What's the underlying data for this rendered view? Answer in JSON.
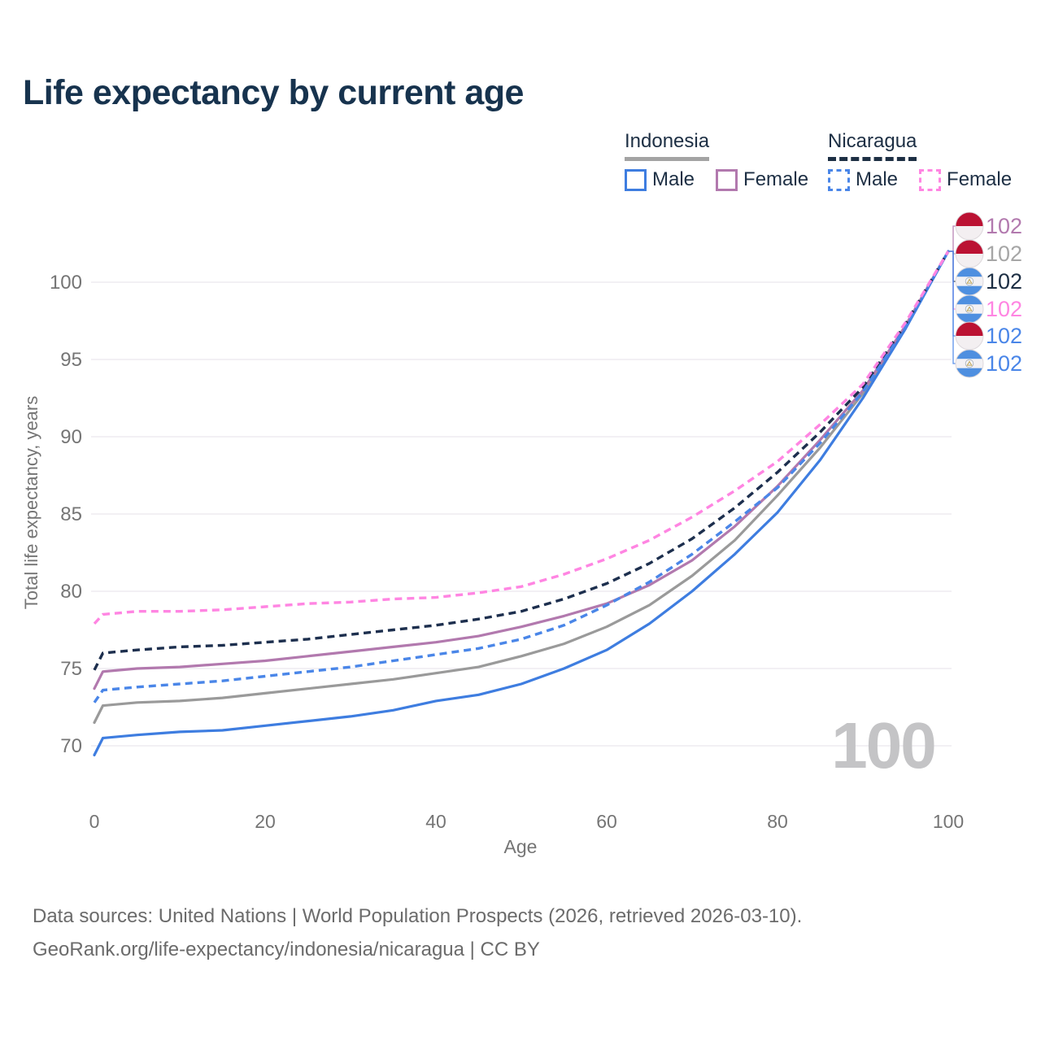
{
  "title": "Life expectancy by current age",
  "legend": {
    "groups": [
      {
        "country": "Indonesia",
        "line_style": "solid",
        "underline_color": "#a3a3a3",
        "items": [
          {
            "label": "Male",
            "color": "#3e7de0",
            "dash": false
          },
          {
            "label": "Female",
            "color": "#b279ae",
            "dash": false
          }
        ]
      },
      {
        "country": "Nicaragua",
        "line_style": "dashed",
        "underline_color": "#1d2f44",
        "items": [
          {
            "label": "Male",
            "color": "#4a86e8",
            "dash": true
          },
          {
            "label": "Female",
            "color": "#ff85e2",
            "dash": true
          }
        ]
      }
    ]
  },
  "watermark": "100",
  "axes": {
    "x": {
      "title": "Age",
      "ticks": [
        0,
        20,
        40,
        60,
        80,
        100
      ]
    },
    "y": {
      "title": "Total life expectancy, years",
      "ticks": [
        70,
        75,
        80,
        85,
        90,
        95,
        100
      ]
    }
  },
  "chart_data": {
    "type": "line",
    "title": "Life expectancy by current age",
    "xlabel": "Age",
    "ylabel": "Total life expectancy, years",
    "xlim": [
      0,
      100
    ],
    "ylim": [
      69,
      102.5
    ],
    "grid": "horizontal",
    "legend_position": "top-right",
    "x": [
      0,
      1,
      5,
      10,
      15,
      20,
      25,
      30,
      35,
      40,
      45,
      50,
      55,
      60,
      65,
      70,
      75,
      80,
      85,
      90,
      95,
      100
    ],
    "series": [
      {
        "name": "Indonesia Total",
        "country": "Indonesia",
        "sex": "Total",
        "color": "#9a9a9a",
        "dash": "solid",
        "values": [
          71.5,
          72.6,
          72.8,
          72.9,
          73.1,
          73.4,
          73.7,
          74.0,
          74.3,
          74.7,
          75.1,
          75.8,
          76.6,
          77.7,
          79.1,
          81.0,
          83.3,
          86.2,
          89.3,
          92.8,
          97.1,
          102
        ]
      },
      {
        "name": "Indonesia Female",
        "country": "Indonesia",
        "sex": "Female",
        "color": "#b279ae",
        "dash": "solid",
        "values": [
          73.7,
          74.8,
          75.0,
          75.1,
          75.3,
          75.5,
          75.8,
          76.1,
          76.4,
          76.7,
          77.1,
          77.7,
          78.4,
          79.2,
          80.4,
          82.0,
          84.2,
          86.8,
          89.8,
          93.0,
          97.2,
          102
        ]
      },
      {
        "name": "Indonesia Male",
        "country": "Indonesia",
        "sex": "Male",
        "color": "#3e7de0",
        "dash": "solid",
        "values": [
          69.4,
          70.5,
          70.7,
          70.9,
          71.0,
          71.3,
          71.6,
          71.9,
          72.3,
          72.9,
          73.3,
          74.0,
          75.0,
          76.2,
          77.9,
          80.0,
          82.4,
          85.1,
          88.5,
          92.5,
          97.0,
          102
        ]
      },
      {
        "name": "Nicaragua Total",
        "country": "Nicaragua",
        "sex": "Total",
        "color": "#1d2f4e",
        "dash": "dashed",
        "values": [
          74.9,
          76.0,
          76.2,
          76.4,
          76.5,
          76.7,
          76.9,
          77.2,
          77.5,
          77.8,
          78.2,
          78.7,
          79.5,
          80.5,
          81.8,
          83.4,
          85.4,
          87.7,
          90.3,
          93.2,
          97.3,
          102
        ]
      },
      {
        "name": "Nicaragua Male",
        "country": "Nicaragua",
        "sex": "Male",
        "color": "#4a86e8",
        "dash": "dashed",
        "values": [
          72.8,
          73.6,
          73.8,
          74.0,
          74.2,
          74.5,
          74.8,
          75.1,
          75.5,
          75.9,
          76.3,
          76.9,
          77.8,
          79.1,
          80.6,
          82.4,
          84.5,
          86.7,
          89.6,
          92.9,
          97.1,
          102
        ]
      },
      {
        "name": "Nicaragua Female",
        "country": "Nicaragua",
        "sex": "Female",
        "color": "#ff85e2",
        "dash": "dashed",
        "values": [
          77.9,
          78.5,
          78.7,
          78.7,
          78.8,
          79.0,
          79.2,
          79.3,
          79.5,
          79.6,
          79.9,
          80.3,
          81.1,
          82.1,
          83.3,
          84.8,
          86.5,
          88.4,
          90.8,
          93.4,
          97.4,
          102
        ]
      }
    ]
  },
  "end_labels": [
    {
      "flag": "indonesia",
      "series": "Indonesia Female",
      "value": "102",
      "color": "#b279ae"
    },
    {
      "flag": "indonesia",
      "series": "Indonesia Total",
      "value": "102",
      "color": "#a6a6a6"
    },
    {
      "flag": "nicaragua",
      "series": "Nicaragua Total",
      "value": "102",
      "color": "#1d2f44"
    },
    {
      "flag": "nicaragua",
      "series": "Nicaragua Female",
      "value": "102",
      "color": "#ff85e2"
    },
    {
      "flag": "indonesia",
      "series": "Indonesia Male",
      "value": "102",
      "color": "#4a86e8"
    },
    {
      "flag": "nicaragua",
      "series": "Nicaragua Male",
      "value": "102",
      "color": "#4a86e8"
    }
  ],
  "flags": {
    "indonesia": {
      "red": "#bb1233",
      "white": "#f3eff1"
    },
    "nicaragua": {
      "blue": "#4e8fe0",
      "white": "#f3f1f4",
      "emblem_gold": "#c2a24a"
    }
  },
  "colors": {
    "title": "#17334e",
    "axis_text": "#757575",
    "gridline": "#e9e7ee",
    "watermark": "#c4c4c6",
    "footer_text": "#6b6b6b"
  },
  "footer": {
    "line1": "Data sources: United Nations | World Population Prospects (2026, retrieved 2026-03-10).",
    "line2": "GeoRank.org/life-expectancy/indonesia/nicaragua | CC BY"
  }
}
